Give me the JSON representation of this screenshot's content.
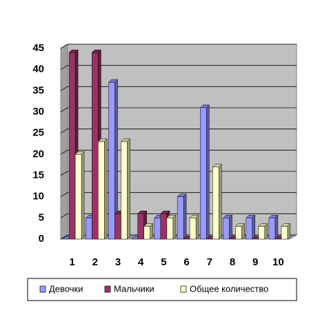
{
  "chart_data": {
    "type": "bar",
    "categories": [
      "1",
      "2",
      "3",
      "4",
      "5",
      "6",
      "7",
      "8",
      "9",
      "10"
    ],
    "series": [
      {
        "name": "Девочки",
        "color": "#9999ff",
        "values": [
          0,
          5,
          37,
          0,
          5,
          10,
          31,
          5,
          5,
          5
        ]
      },
      {
        "name": "Мальчики",
        "color": "#993366",
        "values": [
          44,
          44,
          6,
          6,
          6,
          0,
          0,
          0,
          0,
          0
        ]
      },
      {
        "name": "Общее количество",
        "color": "#ffffcc",
        "values": [
          20,
          23,
          23,
          3,
          5,
          5,
          17,
          3,
          3,
          3
        ]
      }
    ],
    "ylim": [
      0,
      45
    ],
    "yticks": [
      0,
      5,
      10,
      15,
      20,
      25,
      30,
      35,
      40,
      45
    ],
    "grid": true,
    "legend": "bottom"
  }
}
